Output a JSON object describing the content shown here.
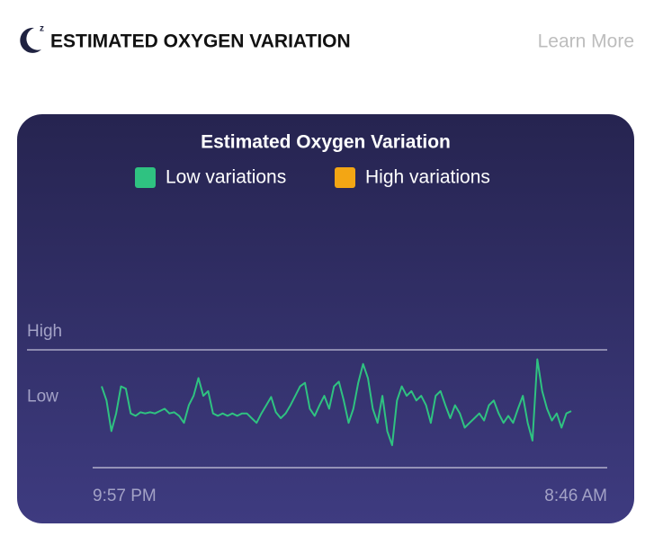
{
  "header": {
    "title": "ESTIMATED OXYGEN VARIATION",
    "link": "Learn More"
  },
  "chart_data": {
    "type": "line",
    "title": "Estimated Oxygen Variation",
    "legend": [
      {
        "name": "Low variations",
        "color": "#2fc281"
      },
      {
        "name": "High variations",
        "color": "#f3a614"
      }
    ],
    "series": {
      "values": [
        69,
        57,
        31,
        46,
        69,
        67,
        46,
        44,
        47,
        46,
        47,
        46,
        48,
        50,
        46,
        47,
        44,
        38,
        53,
        61,
        76,
        61,
        65,
        46,
        44,
        46,
        44,
        46,
        44,
        46,
        46,
        42,
        38,
        46,
        53,
        60,
        47,
        42,
        46,
        53,
        61,
        69,
        72,
        50,
        44,
        53,
        61,
        50,
        69,
        73,
        57,
        38,
        50,
        72,
        88,
        76,
        50,
        38,
        61,
        31,
        19,
        57,
        69,
        61,
        65,
        57,
        61,
        53,
        38,
        61,
        65,
        53,
        42,
        53,
        46,
        34,
        38,
        42,
        46,
        40,
        53,
        57,
        46,
        38,
        44,
        38,
        50,
        61,
        38,
        23,
        92,
        65,
        50,
        40,
        46,
        34,
        46,
        48
      ]
    },
    "ylim": [
      0,
      100
    ],
    "yticks": [
      {
        "value": 100,
        "label": "High"
      },
      {
        "value": 60,
        "label": "Low"
      }
    ],
    "x_labels": [
      "9:57 PM",
      "8:46 AM"
    ]
  }
}
